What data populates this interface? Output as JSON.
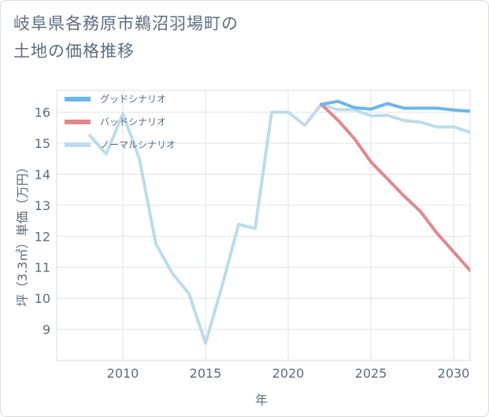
{
  "chart_data": {
    "type": "line",
    "title_line1": "岐阜県各務原市鵜沼羽場町の",
    "title_line2": "土地の価格推移",
    "xlabel": "年",
    "ylabel": "坪（3.3㎡）単価（万円）",
    "xlim": [
      2006,
      2031
    ],
    "ylim": [
      8,
      16.7
    ],
    "xticks": [
      2010,
      2015,
      2020,
      2025,
      2030
    ],
    "yticks": [
      9,
      10,
      11,
      12,
      13,
      14,
      15,
      16
    ],
    "grid": true,
    "legend_position": "top-left",
    "series": [
      {
        "name": "グッドシナリオ",
        "color": "#6cb6ea",
        "x": [
          2022,
          2023,
          2024,
          2025,
          2026,
          2027,
          2028,
          2029,
          2030,
          2031
        ],
        "y": [
          16.25,
          16.35,
          16.15,
          16.1,
          16.28,
          16.13,
          16.13,
          16.13,
          16.07,
          16.03
        ]
      },
      {
        "name": "バッドシナリオ",
        "color": "#e0888e",
        "x": [
          2022,
          2023,
          2024,
          2025,
          2026,
          2027,
          2028,
          2029,
          2030,
          2031
        ],
        "y": [
          16.25,
          15.75,
          15.15,
          14.4,
          13.85,
          13.3,
          12.8,
          12.1,
          11.5,
          10.9
        ]
      },
      {
        "name": "ノーマルシナリオ",
        "color": "#bcdcec",
        "x": [
          2008,
          2009,
          2010,
          2011,
          2012,
          2013,
          2014,
          2015,
          2016,
          2017,
          2018,
          2019,
          2020,
          2021,
          2022,
          2023,
          2024,
          2025,
          2026,
          2027,
          2028,
          2029,
          2030,
          2031
        ],
        "y": [
          15.25,
          14.65,
          15.95,
          14.5,
          11.75,
          10.8,
          10.15,
          8.55,
          10.4,
          12.38,
          12.25,
          16.0,
          16.0,
          15.58,
          16.25,
          16.08,
          16.08,
          15.88,
          15.9,
          15.73,
          15.68,
          15.52,
          15.53,
          15.35
        ]
      }
    ]
  }
}
